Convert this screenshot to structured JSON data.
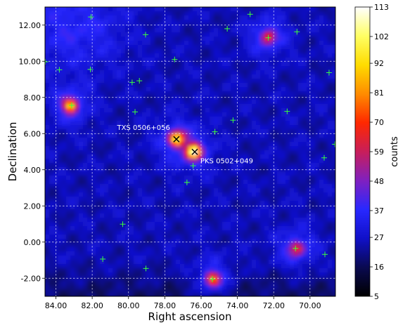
{
  "chart_data": {
    "type": "heatmap",
    "xlabel": "Right ascension",
    "ylabel": "Declination",
    "xlim": [
      84.6,
      68.6
    ],
    "ylim": [
      -3.0,
      13.0
    ],
    "x_ticks": [
      84.0,
      82.0,
      80.0,
      78.0,
      76.0,
      74.0,
      72.0,
      70.0
    ],
    "x_tick_labels": [
      "84.00",
      "82.00",
      "80.00",
      "78.00",
      "76.00",
      "74.00",
      "72.00",
      "70.00"
    ],
    "y_ticks": [
      -2.0,
      0.0,
      2.0,
      4.0,
      6.0,
      8.0,
      10.0,
      12.0
    ],
    "y_tick_labels": [
      "-2.00",
      "0.00",
      "2.00",
      "4.00",
      "6.00",
      "8.00",
      "10.00",
      "12.00"
    ],
    "grid": true,
    "colorbar": {
      "label": "counts",
      "min": 5,
      "max": 113,
      "ticks": [
        5,
        16,
        27,
        37,
        48,
        59,
        70,
        81,
        92,
        102,
        113
      ],
      "colormap": [
        "#000000",
        "#0a0a50",
        "#1010c8",
        "#2828ff",
        "#8020c0",
        "#c81e5a",
        "#ff2800",
        "#ff8c00",
        "#ffdc00",
        "#ffff64",
        "#ffffff"
      ]
    },
    "background_level": 25,
    "hotspots": [
      {
        "ra": 83.2,
        "dec": 7.55,
        "peak": 80
      },
      {
        "ra": 77.35,
        "dec": 5.7,
        "peak": 85
      },
      {
        "ra": 76.4,
        "dec": 4.99,
        "peak": 95
      },
      {
        "ra": 75.35,
        "dec": -2.05,
        "peak": 70
      },
      {
        "ra": 72.3,
        "dec": 11.35,
        "peak": 55
      },
      {
        "ra": 70.75,
        "dec": -0.35,
        "peak": 55
      }
    ],
    "labeled_sources": [
      {
        "name": "TXS 0506+056",
        "ra": 77.36,
        "dec": 5.69
      },
      {
        "name": "PKS 0502+049",
        "ra": 76.35,
        "dec": 4.99
      }
    ],
    "catalog_sources": [
      {
        "ra": 83.13,
        "dec": 7.56
      },
      {
        "ra": 82.07,
        "dec": 12.45
      },
      {
        "ra": 82.1,
        "dec": 9.55
      },
      {
        "ra": 83.81,
        "dec": 9.53
      },
      {
        "ra": 84.58,
        "dec": 9.97
      },
      {
        "ra": 79.8,
        "dec": 8.83
      },
      {
        "ra": 79.4,
        "dec": 8.92
      },
      {
        "ra": 79.06,
        "dec": 11.47
      },
      {
        "ra": 79.64,
        "dec": 7.2
      },
      {
        "ra": 77.46,
        "dec": 10.1
      },
      {
        "ra": 75.24,
        "dec": 6.1
      },
      {
        "ra": 74.24,
        "dec": 6.74
      },
      {
        "ra": 76.44,
        "dec": 4.22
      },
      {
        "ra": 76.78,
        "dec": 3.3
      },
      {
        "ra": 74.56,
        "dec": 11.8
      },
      {
        "ra": 73.3,
        "dec": 12.6
      },
      {
        "ra": 72.3,
        "dec": 11.3
      },
      {
        "ra": 70.72,
        "dec": 11.63
      },
      {
        "ra": 71.26,
        "dec": 7.23
      },
      {
        "ra": 69.22,
        "dec": 4.66
      },
      {
        "ra": 68.95,
        "dec": 9.37
      },
      {
        "ra": 80.32,
        "dec": 0.99
      },
      {
        "ra": 81.42,
        "dec": -0.94
      },
      {
        "ra": 79.04,
        "dec": -1.46
      },
      {
        "ra": 75.38,
        "dec": -2.05
      },
      {
        "ra": 69.18,
        "dec": -0.68
      },
      {
        "ra": 70.8,
        "dec": -0.35
      },
      {
        "ra": 68.63,
        "dec": 5.41
      }
    ]
  }
}
